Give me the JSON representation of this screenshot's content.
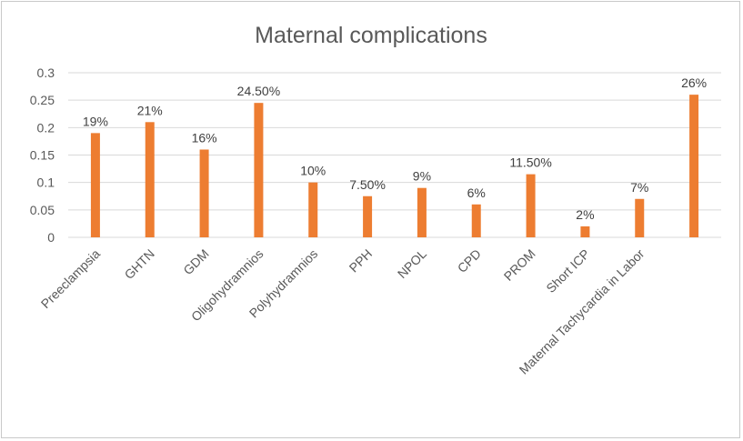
{
  "chart_data": {
    "type": "bar",
    "title": "Maternal complications",
    "xlabel": "",
    "ylabel": "",
    "ylim": [
      0,
      0.3
    ],
    "yticks": [
      "0",
      "0.05",
      "0.1",
      "0.15",
      "0.2",
      "0.25",
      "0.3"
    ],
    "grid": true,
    "legend": "none",
    "bar_color": "#ED7D31",
    "categories": [
      "Preeclampsia",
      "GHTN",
      "GDM",
      "Oligohydramnios",
      "Polyhydramnios",
      "PPH",
      "NPOL",
      "CPD",
      "PROM",
      "Short ICP",
      "Maternal Tachycardia in Labor",
      ""
    ],
    "values": [
      0.19,
      0.21,
      0.16,
      0.245,
      0.1,
      0.075,
      0.09,
      0.06,
      0.115,
      0.02,
      0.07,
      0.26
    ],
    "data_labels": [
      "19%",
      "21%",
      "16%",
      "24.50%",
      "10%",
      "7.50%",
      "9%",
      "6%",
      "11.50%",
      "2%",
      "7%",
      "26%"
    ]
  }
}
